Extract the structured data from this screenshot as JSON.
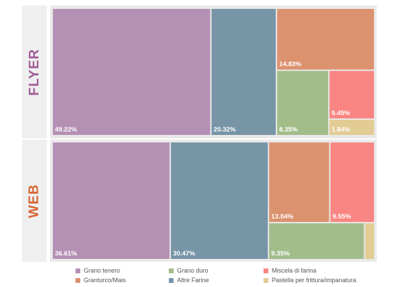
{
  "chart_data": {
    "type": "treemap",
    "panels": [
      {
        "name": "FLYER",
        "label_color": "#a05d97",
        "items": [
          {
            "category": "Grano tenero",
            "value": 49.22,
            "label": "49.22%"
          },
          {
            "category": "Altre Farine",
            "value": 20.32,
            "label": "20.32%"
          },
          {
            "category": "Granturco/Mais",
            "value": 14.83,
            "label": "14.83%"
          },
          {
            "category": "Grano duro",
            "value": 8.35,
            "label": "8.35%"
          },
          {
            "category": "Miscela di farina",
            "value": 5.45,
            "label": "5.45%"
          },
          {
            "category": "Pastella per frittura/impanatura",
            "value": 1.84,
            "label": "1.84%"
          }
        ]
      },
      {
        "name": "WEB",
        "label_color": "#d96634",
        "items": [
          {
            "category": "Grano tenero",
            "value": 36.61,
            "label": "36.61%"
          },
          {
            "category": "Altre Farine",
            "value": 30.47,
            "label": "30.47%"
          },
          {
            "category": "Granturco/Mais",
            "value": 13.04,
            "label": "13.04%"
          },
          {
            "category": "Miscela di farina",
            "value": 9.55,
            "label": "9.55%"
          },
          {
            "category": "Grano duro",
            "value": 9.35,
            "label": "9.35%"
          },
          {
            "category": "Pastella per frittura/impanatura",
            "value": 0.98,
            "label": ""
          }
        ]
      }
    ],
    "legend": [
      {
        "label": "Grano tenero",
        "color": "#b590b5"
      },
      {
        "label": "Grano duro",
        "color": "#a3bd8a"
      },
      {
        "label": "Miscela di farina",
        "color": "#f98682"
      },
      {
        "label": "Granturco/Mais",
        "color": "#dc926f"
      },
      {
        "label": "Altre Farine",
        "color": "#7895a8"
      },
      {
        "label": "Pastella per frittura/impanatura",
        "color": "#e3cc94"
      }
    ]
  }
}
